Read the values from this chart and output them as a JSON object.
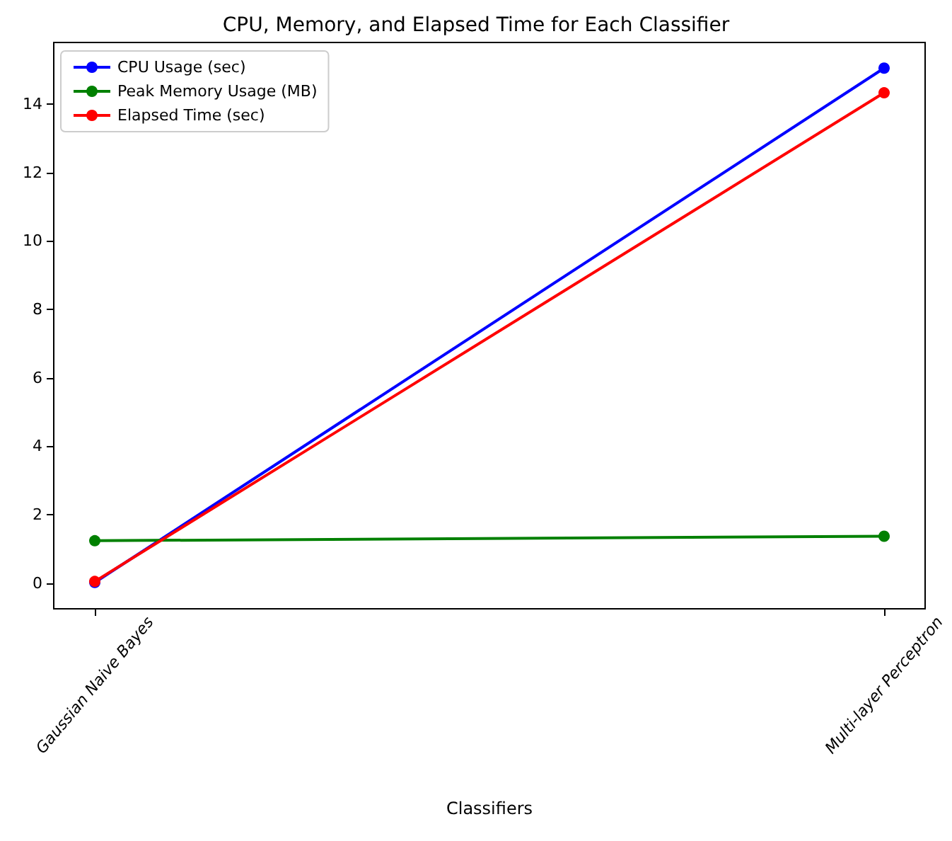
{
  "chart_data": {
    "type": "line",
    "title": "CPU, Memory, and Elapsed Time for Each Classifier",
    "xlabel": "Classifiers",
    "categories": [
      "Gaussian Naive Bayes",
      "Multi-layer Perceptron"
    ],
    "series": [
      {
        "name": "CPU Usage (sec)",
        "color": "#0000ff",
        "values": [
          0.02,
          15.05
        ]
      },
      {
        "name": "Peak Memory Usage (MB)",
        "color": "#008000",
        "values": [
          1.24,
          1.37
        ]
      },
      {
        "name": "Elapsed Time (sec)",
        "color": "#ff0000",
        "values": [
          0.05,
          14.33
        ]
      }
    ],
    "ylim": [
      -0.75,
      15.8
    ],
    "yticks": [
      0,
      2,
      4,
      6,
      8,
      10,
      12,
      14
    ],
    "grid": false,
    "legend": "top left",
    "marker": "circle",
    "line_style": "solid"
  }
}
